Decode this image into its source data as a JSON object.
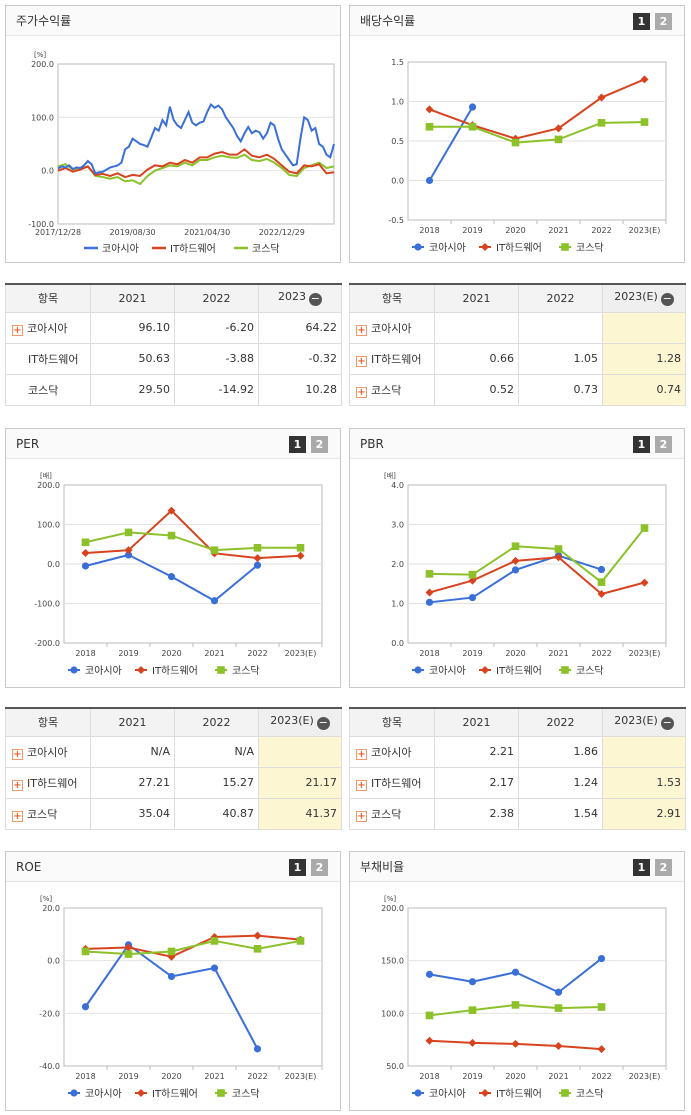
{
  "colors": {
    "s1": "#3a6fd8",
    "s2": "#d8431f",
    "s3": "#8cc12a"
  },
  "legend": [
    "코아시아",
    "IT하드웨어",
    "코스닥"
  ],
  "btn_labels": [
    "1",
    "2"
  ],
  "panels": {
    "stock": {
      "title": "주가수익률",
      "unit": "[%]"
    },
    "dividend": {
      "title": "배당수익률",
      "unit": ""
    },
    "per": {
      "title": "PER",
      "unit": "[배]"
    },
    "pbr": {
      "title": "PBR",
      "unit": "[배]"
    },
    "roe": {
      "title": "ROE",
      "unit": "[%]"
    },
    "debt": {
      "title": "부채비율",
      "unit": "[%]"
    }
  },
  "tables": {
    "stock": {
      "headers": [
        "항목",
        "2021",
        "2022",
        "2023"
      ],
      "rows": [
        {
          "name": "코아시아",
          "plus": true,
          "v": [
            "96.10",
            "-6.20",
            "64.22"
          ]
        },
        {
          "name": "IT하드웨어",
          "plus": false,
          "v": [
            "50.63",
            "-3.88",
            "-0.32"
          ]
        },
        {
          "name": "코스닥",
          "plus": false,
          "v": [
            "29.50",
            "-14.92",
            "10.28"
          ]
        }
      ]
    },
    "dividend": {
      "headers": [
        "항목",
        "2021",
        "2022",
        "2023(E)"
      ],
      "rows": [
        {
          "name": "코아시아",
          "plus": true,
          "v": [
            "",
            "",
            ""
          ]
        },
        {
          "name": "IT하드웨어",
          "plus": true,
          "v": [
            "0.66",
            "1.05",
            "1.28"
          ]
        },
        {
          "name": "코스닥",
          "plus": true,
          "v": [
            "0.52",
            "0.73",
            "0.74"
          ]
        }
      ]
    },
    "per": {
      "headers": [
        "항목",
        "2021",
        "2022",
        "2023(E)"
      ],
      "rows": [
        {
          "name": "코아시아",
          "plus": true,
          "v": [
            "N/A",
            "N/A",
            ""
          ]
        },
        {
          "name": "IT하드웨어",
          "plus": true,
          "v": [
            "27.21",
            "15.27",
            "21.17"
          ]
        },
        {
          "name": "코스닥",
          "plus": true,
          "v": [
            "35.04",
            "40.87",
            "41.37"
          ]
        }
      ]
    },
    "pbr": {
      "headers": [
        "항목",
        "2021",
        "2022",
        "2023(E)"
      ],
      "rows": [
        {
          "name": "코아시아",
          "plus": true,
          "v": [
            "2.21",
            "1.86",
            ""
          ]
        },
        {
          "name": "IT하드웨어",
          "plus": true,
          "v": [
            "2.17",
            "1.24",
            "1.53"
          ]
        },
        {
          "name": "코스닥",
          "plus": true,
          "v": [
            "2.38",
            "1.54",
            "2.91"
          ]
        }
      ]
    }
  },
  "chart_data": [
    {
      "id": "stock",
      "type": "line",
      "title": "주가수익률",
      "ylabel": "[%]",
      "ylim": [
        -100,
        200
      ],
      "yticks": [
        "-100.0",
        "0.0",
        "100.0",
        "200.0"
      ],
      "xtick_labels": [
        "2017/12/28",
        "2019/08/30",
        "2021/04/30",
        "2022/12/29"
      ],
      "x_range": [
        0,
        74
      ],
      "series": [
        {
          "name": "코아시아",
          "points": [
            [
              0,
              4
            ],
            [
              1,
              8
            ],
            [
              2,
              6
            ],
            [
              3,
              10
            ],
            [
              4,
              3
            ],
            [
              5,
              6
            ],
            [
              6,
              5
            ],
            [
              7,
              10
            ],
            [
              8,
              18
            ],
            [
              9,
              12
            ],
            [
              10,
              -5
            ],
            [
              11,
              -3
            ],
            [
              12,
              -2
            ],
            [
              13,
              2
            ],
            [
              14,
              6
            ],
            [
              15,
              8
            ],
            [
              16,
              10
            ],
            [
              17,
              15
            ],
            [
              18,
              40
            ],
            [
              19,
              45
            ],
            [
              20,
              60
            ],
            [
              21,
              55
            ],
            [
              22,
              50
            ],
            [
              23,
              48
            ],
            [
              24,
              45
            ],
            [
              25,
              62
            ],
            [
              26,
              80
            ],
            [
              27,
              75
            ],
            [
              28,
              95
            ],
            [
              29,
              85
            ],
            [
              30,
              120
            ],
            [
              31,
              95
            ],
            [
              32,
              85
            ],
            [
              33,
              80
            ],
            [
              34,
              95
            ],
            [
              35,
              110
            ],
            [
              36,
              90
            ],
            [
              37,
              85
            ],
            [
              38,
              90
            ],
            [
              39,
              92
            ],
            [
              40,
              110
            ],
            [
              41,
              124
            ],
            [
              42,
              118
            ],
            [
              43,
              122
            ],
            [
              44,
              115
            ],
            [
              45,
              100
            ],
            [
              46,
              90
            ],
            [
              47,
              80
            ],
            [
              48,
              65
            ],
            [
              49,
              55
            ],
            [
              50,
              70
            ],
            [
              51,
              82
            ],
            [
              52,
              70
            ],
            [
              53,
              75
            ],
            [
              54,
              72
            ],
            [
              55,
              60
            ],
            [
              56,
              70
            ],
            [
              57,
              90
            ],
            [
              58,
              85
            ],
            [
              59,
              60
            ],
            [
              60,
              40
            ],
            [
              61,
              30
            ],
            [
              62,
              20
            ],
            [
              63,
              10
            ],
            [
              64,
              12
            ],
            [
              65,
              60
            ],
            [
              66,
              100
            ],
            [
              67,
              95
            ],
            [
              68,
              75
            ],
            [
              69,
              80
            ],
            [
              70,
              50
            ],
            [
              71,
              45
            ],
            [
              72,
              30
            ],
            [
              73,
              25
            ],
            [
              74,
              50
            ]
          ]
        },
        {
          "name": "IT하드웨어",
          "points": [
            [
              0,
              0
            ],
            [
              2,
              5
            ],
            [
              4,
              -2
            ],
            [
              6,
              2
            ],
            [
              8,
              8
            ],
            [
              10,
              -8
            ],
            [
              12,
              -6
            ],
            [
              14,
              -10
            ],
            [
              16,
              -5
            ],
            [
              18,
              -12
            ],
            [
              20,
              -8
            ],
            [
              22,
              -10
            ],
            [
              24,
              2
            ],
            [
              26,
              10
            ],
            [
              28,
              8
            ],
            [
              30,
              15
            ],
            [
              32,
              12
            ],
            [
              34,
              20
            ],
            [
              36,
              15
            ],
            [
              38,
              25
            ],
            [
              40,
              25
            ],
            [
              42,
              32
            ],
            [
              44,
              35
            ],
            [
              46,
              30
            ],
            [
              48,
              30
            ],
            [
              50,
              40
            ],
            [
              52,
              28
            ],
            [
              54,
              25
            ],
            [
              56,
              30
            ],
            [
              58,
              22
            ],
            [
              60,
              10
            ],
            [
              62,
              -2
            ],
            [
              64,
              -5
            ],
            [
              66,
              10
            ],
            [
              68,
              8
            ],
            [
              70,
              12
            ],
            [
              72,
              -5
            ],
            [
              74,
              -3
            ]
          ]
        },
        {
          "name": "코스닥",
          "points": [
            [
              0,
              8
            ],
            [
              2,
              12
            ],
            [
              4,
              2
            ],
            [
              6,
              4
            ],
            [
              8,
              8
            ],
            [
              10,
              -10
            ],
            [
              12,
              -12
            ],
            [
              14,
              -15
            ],
            [
              16,
              -12
            ],
            [
              18,
              -20
            ],
            [
              20,
              -18
            ],
            [
              22,
              -25
            ],
            [
              24,
              -10
            ],
            [
              26,
              0
            ],
            [
              28,
              5
            ],
            [
              30,
              10
            ],
            [
              32,
              8
            ],
            [
              34,
              15
            ],
            [
              36,
              10
            ],
            [
              38,
              20
            ],
            [
              40,
              20
            ],
            [
              42,
              25
            ],
            [
              44,
              28
            ],
            [
              46,
              25
            ],
            [
              48,
              24
            ],
            [
              50,
              30
            ],
            [
              52,
              20
            ],
            [
              54,
              18
            ],
            [
              56,
              22
            ],
            [
              58,
              15
            ],
            [
              60,
              5
            ],
            [
              62,
              -8
            ],
            [
              64,
              -10
            ],
            [
              66,
              5
            ],
            [
              68,
              10
            ],
            [
              70,
              15
            ],
            [
              72,
              5
            ],
            [
              74,
              8
            ]
          ]
        }
      ]
    },
    {
      "id": "dividend",
      "type": "line",
      "title": "배당수익률",
      "ylim": [
        -0.5,
        1.5
      ],
      "yticks": [
        "-0.5",
        "0.0",
        "0.5",
        "1.0",
        "1.5"
      ],
      "categories": [
        "2018",
        "2019",
        "2020",
        "2021",
        "2022",
        "2023(E)"
      ],
      "series": [
        {
          "name": "코아시아",
          "marker": "circle",
          "values": [
            0.0,
            0.93,
            null,
            null,
            null,
            null
          ]
        },
        {
          "name": "IT하드웨어",
          "marker": "diamond",
          "values": [
            0.9,
            0.7,
            0.53,
            0.66,
            1.05,
            1.28
          ]
        },
        {
          "name": "코스닥",
          "marker": "square",
          "values": [
            0.68,
            0.68,
            0.48,
            0.52,
            0.73,
            0.74
          ]
        }
      ]
    },
    {
      "id": "per",
      "type": "line",
      "title": "PER",
      "ylabel": "[배]",
      "ylim": [
        -200,
        200
      ],
      "yticks": [
        "-200.0",
        "-100.0",
        "0.0",
        "100.0",
        "200.0"
      ],
      "categories": [
        "2018",
        "2019",
        "2020",
        "2021",
        "2022",
        "2023(E)"
      ],
      "series": [
        {
          "name": "코아시아",
          "marker": "circle",
          "values": [
            -5,
            23,
            -32,
            -93,
            -3,
            null
          ]
        },
        {
          "name": "IT하드웨어",
          "marker": "diamond",
          "values": [
            28,
            35,
            135,
            27,
            15,
            21
          ]
        },
        {
          "name": "코스닥",
          "marker": "square",
          "values": [
            55,
            80,
            72,
            35,
            41,
            41
          ]
        }
      ]
    },
    {
      "id": "pbr",
      "type": "line",
      "title": "PBR",
      "ylabel": "[배]",
      "ylim": [
        0,
        4
      ],
      "yticks": [
        "0.0",
        "1.0",
        "2.0",
        "3.0",
        "4.0"
      ],
      "categories": [
        "2018",
        "2019",
        "2020",
        "2021",
        "2022",
        "2023(E)"
      ],
      "series": [
        {
          "name": "코아시아",
          "marker": "circle",
          "values": [
            1.03,
            1.15,
            1.85,
            2.21,
            1.86,
            null
          ]
        },
        {
          "name": "IT하드웨어",
          "marker": "diamond",
          "values": [
            1.28,
            1.58,
            2.08,
            2.17,
            1.24,
            1.53
          ]
        },
        {
          "name": "코스닥",
          "marker": "square",
          "values": [
            1.75,
            1.73,
            2.45,
            2.38,
            1.54,
            2.91
          ]
        }
      ]
    },
    {
      "id": "roe",
      "type": "line",
      "title": "ROE",
      "ylabel": "[%]",
      "ylim": [
        -40,
        20
      ],
      "yticks": [
        "-40.0",
        "-20.0",
        "0.0",
        "20.0"
      ],
      "categories": [
        "2018",
        "2019",
        "2020",
        "2021",
        "2022",
        "2023(E)"
      ],
      "series": [
        {
          "name": "코아시아",
          "marker": "circle",
          "values": [
            -17.5,
            6.0,
            -6.0,
            -2.8,
            -33.5,
            null
          ]
        },
        {
          "name": "IT하드웨어",
          "marker": "diamond",
          "values": [
            4.5,
            5.0,
            1.5,
            9.0,
            9.5,
            8.0
          ]
        },
        {
          "name": "코스닥",
          "marker": "square",
          "values": [
            3.5,
            2.5,
            3.5,
            7.5,
            4.5,
            7.5
          ]
        }
      ]
    },
    {
      "id": "debt",
      "type": "line",
      "title": "부채비율",
      "ylabel": "[%]",
      "ylim": [
        50,
        200
      ],
      "yticks": [
        "50.0",
        "100.0",
        "150.0",
        "200.0"
      ],
      "categories": [
        "2018",
        "2019",
        "2020",
        "2021",
        "2022",
        "2023(E)"
      ],
      "series": [
        {
          "name": "코아시아",
          "marker": "circle",
          "values": [
            137,
            130,
            139,
            120,
            152,
            null
          ]
        },
        {
          "name": "IT하드웨어",
          "marker": "diamond",
          "values": [
            74,
            72,
            71,
            69,
            66,
            null
          ]
        },
        {
          "name": "코스닥",
          "marker": "square",
          "values": [
            98,
            103,
            108,
            105,
            106,
            null
          ]
        }
      ]
    }
  ]
}
